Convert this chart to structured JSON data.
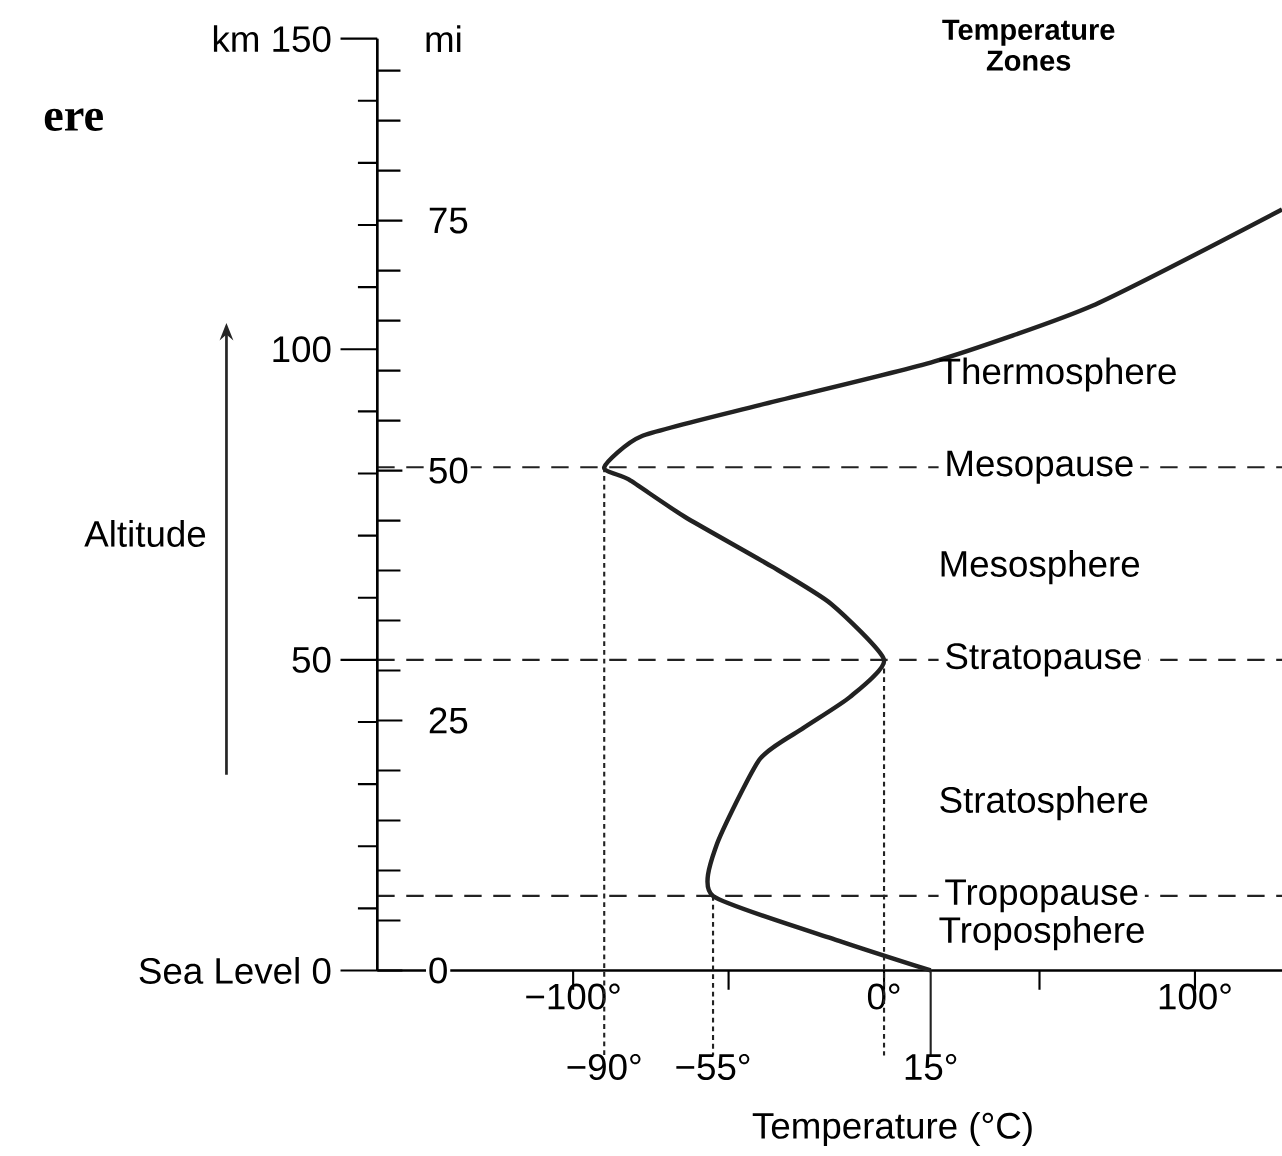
{
  "chart_data": {
    "type": "line",
    "title": "ere",
    "xlabel": "Temperature (°C)",
    "ylabel": "Altitude",
    "y2label": "mi",
    "x": [
      15,
      -14,
      -55,
      -54,
      -40,
      -26,
      -11,
      0,
      -17,
      -36,
      -64,
      -82,
      -90,
      -78,
      -40,
      16,
      67,
      128
    ],
    "series": [
      {
        "color": "#222222",
        "values": [
          0,
          4.7,
          12,
          20,
          34,
          39,
          44,
          50,
          59,
          65,
          73,
          79,
          81,
          86,
          91,
          98,
          107,
          122.5
        ]
      }
    ],
    "xlim": [
      -163,
      128
    ],
    "xticks": [
      {
        "value": -100,
        "label": "−100°"
      },
      {
        "value": -50,
        "label": null
      },
      {
        "value": 0,
        "label": "0°"
      },
      {
        "value": 50,
        "label": null
      },
      {
        "value": 100,
        "label": "100°"
      }
    ],
    "ylim": [
      0,
      150
    ],
    "yticks": [
      {
        "value": 0,
        "label": "Sea Level 0"
      },
      {
        "value": 10,
        "label": null
      },
      {
        "value": 20,
        "label": null
      },
      {
        "value": 30,
        "label": null
      },
      {
        "value": 40,
        "label": null
      },
      {
        "value": 50,
        "label": "50"
      },
      {
        "value": 60,
        "label": null
      },
      {
        "value": 70,
        "label": null
      },
      {
        "value": 80,
        "label": null
      },
      {
        "value": 90,
        "label": null
      },
      {
        "value": 100,
        "label": "100"
      },
      {
        "value": 110,
        "label": null
      },
      {
        "value": 120,
        "label": null
      },
      {
        "value": 130,
        "label": null
      },
      {
        "value": 140,
        "label": null
      },
      {
        "value": 150,
        "label": "km 150"
      }
    ],
    "y2lim": [
      0,
      93.2
    ],
    "y2ticks": [
      0,
      {
        "value": 5,
        "label": null
      },
      {
        "value": 10,
        "label": null
      },
      {
        "value": 15,
        "label": null
      },
      {
        "value": 20,
        "label": null
      },
      25,
      {
        "value": 30,
        "label": null
      },
      {
        "value": 35,
        "label": null
      },
      {
        "value": 40,
        "label": null
      },
      {
        "value": 45,
        "label": null
      },
      50,
      {
        "value": 55,
        "label": null
      },
      {
        "value": 60,
        "label": null
      },
      {
        "value": 65,
        "label": null
      },
      {
        "value": 70,
        "label": null
      },
      75,
      {
        "value": 80,
        "label": null
      },
      {
        "value": 85,
        "label": null
      },
      {
        "value": 90,
        "label": null
      }
    ],
    "ref_lines": [
      {
        "axis": "y",
        "value": 81,
        "label": "Mesopause",
        "line_style": "dashed",
        "color": "#222222"
      },
      {
        "axis": "y",
        "value": 50,
        "label": "Stratopause",
        "line_style": "dashed",
        "color": "#222222"
      },
      {
        "axis": "y",
        "value": 12,
        "label": "Tropopause",
        "line_style": "dashed",
        "color": "#222222"
      },
      {
        "axis": "x",
        "value": -90,
        "label": "−90°",
        "line_style": "dotted",
        "color": "#222222"
      },
      {
        "axis": "x",
        "value": -55,
        "label": "−55°",
        "line_style": "dotted",
        "color": "#222222"
      },
      {
        "axis": "x",
        "value": 0,
        "line_style": "dotted",
        "color": "#222222"
      },
      {
        "axis": "x",
        "value": 15,
        "label": "15°",
        "line_style": "solid",
        "color": "#222222"
      }
    ],
    "annotations": [
      "Temperature Zones",
      "Thermosphere",
      "Mesosphere",
      "Stratosphere",
      "Troposphere"
    ]
  }
}
